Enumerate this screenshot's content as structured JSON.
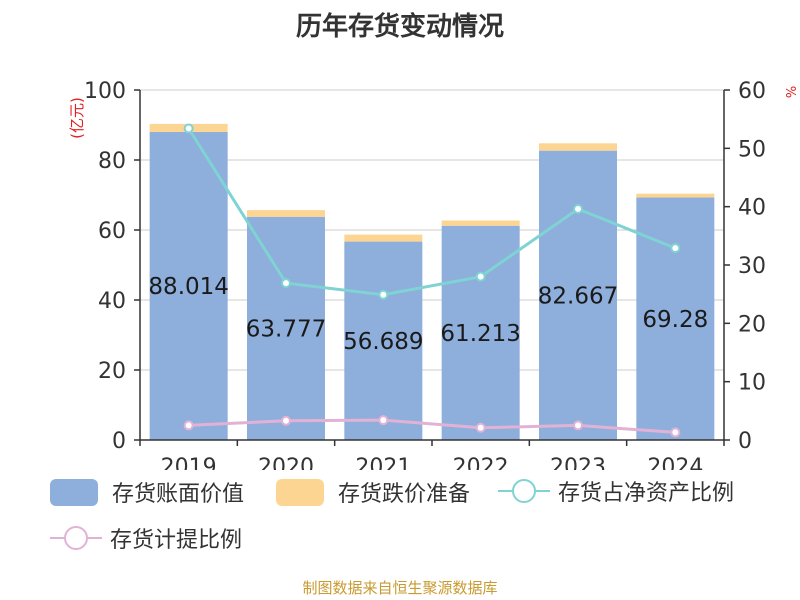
{
  "chart_data": {
    "type": "bar",
    "title": "历年存货变动情况",
    "categories": [
      "2019",
      "2020",
      "2021",
      "2022",
      "2023",
      "2024"
    ],
    "left_axis": {
      "label": "(亿元)",
      "range": [
        0,
        100
      ],
      "ticks": [
        0,
        20,
        40,
        60,
        80,
        100
      ]
    },
    "right_axis": {
      "label": "%",
      "range": [
        0,
        60
      ],
      "ticks": [
        0,
        10,
        20,
        30,
        40,
        50,
        60
      ]
    },
    "grid": true,
    "legend_position": "bottom",
    "series": [
      {
        "name": "存货账面价值",
        "type": "bar",
        "axis": "left",
        "color": "#8eaedb",
        "values": [
          88.014,
          63.777,
          56.689,
          61.213,
          82.667,
          69.28
        ],
        "labels": [
          "88.014",
          "63.777",
          "56.689",
          "61.213",
          "82.667",
          "69.28"
        ]
      },
      {
        "name": "存货跌价准备",
        "type": "bar-stacked",
        "axis": "left",
        "color": "#fcd592",
        "values": [
          2.3,
          1.9,
          2.0,
          1.5,
          2.1,
          1.1
        ]
      },
      {
        "name": "存货占净资产比例",
        "type": "line",
        "axis": "right",
        "color": "#7fd3d3",
        "values": [
          53.4,
          26.9,
          24.9,
          28.0,
          39.6,
          32.9
        ]
      },
      {
        "name": "存货计提比例",
        "type": "line",
        "axis": "right",
        "color": "#e2b2d6",
        "values": [
          2.5,
          3.3,
          3.4,
          2.1,
          2.5,
          1.3
        ]
      }
    ]
  },
  "footer": {
    "text": "制图数据来自恒生聚源数据库",
    "color": "#c99a30"
  }
}
